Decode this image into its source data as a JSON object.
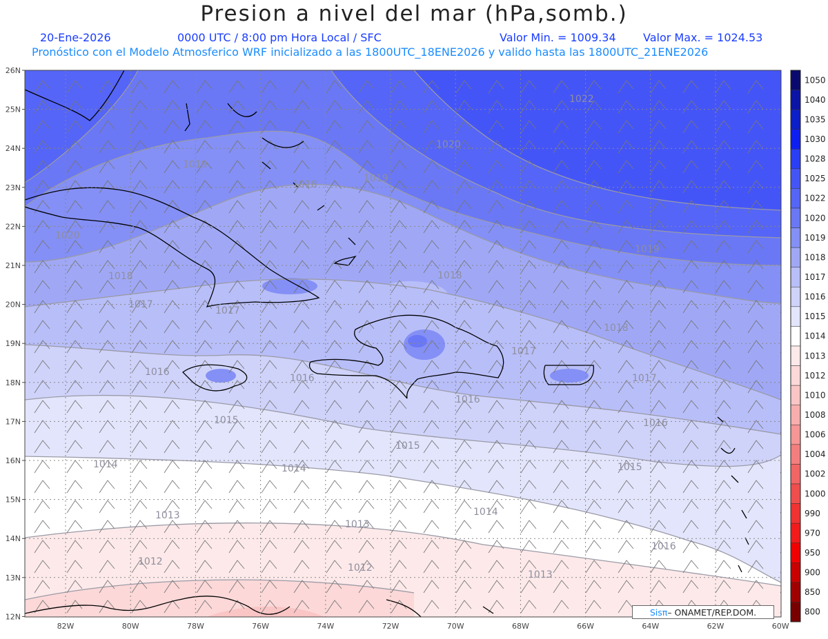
{
  "header": {
    "title": "Presion a nivel del mar (hPa,somb.)",
    "date": "20-Ene-2026",
    "time_label": "0000 UTC / 8:00 pm Hora Local / SFC",
    "min_label": "Valor Min. = 1009.34",
    "max_label": "Valor Max. = 1024.53",
    "model_line": "Pronóstico con el Modelo Atmosferico WRF inicializado a las 1800UTC_18ENE2026 y valido hasta las  1800UTC_21ENE2026"
  },
  "map": {
    "lat_labels": [
      "26N",
      "25N",
      "24N",
      "23N",
      "22N",
      "21N",
      "20N",
      "19N",
      "18N",
      "17N",
      "16N",
      "15N",
      "14N",
      "13N",
      "12N"
    ],
    "lon_labels": [
      "82W",
      "80W",
      "78W",
      "76W",
      "74W",
      "72W",
      "70W",
      "68W",
      "66W",
      "64W",
      "62W",
      "60W"
    ],
    "contour_labels": [
      "1022",
      "1020",
      "1020",
      "1019",
      "1019",
      "1018",
      "1018",
      "1018",
      "1017",
      "1017",
      "1017",
      "1016",
      "1016",
      "1016",
      "1015",
      "1015",
      "1015",
      "1014",
      "1014",
      "1014",
      "1013",
      "1013",
      "1013",
      "1012",
      "1012",
      "1019",
      "1018",
      "1016",
      "1017",
      "1016"
    ]
  },
  "colorbar": {
    "levels": [
      "1050",
      "1040",
      "1035",
      "1030",
      "1028",
      "1025",
      "1022",
      "1020",
      "1019",
      "1018",
      "1017",
      "1016",
      "1015",
      "1014",
      "1013",
      "1012",
      "1010",
      "1008",
      "1006",
      "1004",
      "1002",
      "1000",
      "990",
      "970",
      "950",
      "900",
      "850",
      "800"
    ],
    "colors": [
      "#0a0a6e",
      "#0b14a6",
      "#0c1ec8",
      "#0d1ef0",
      "#2a3ef5",
      "#4455f8",
      "#5565f7",
      "#6a78f5",
      "#8490f5",
      "#a0a8f6",
      "#b8bef8",
      "#cfd3fa",
      "#e3e5fc",
      "#ffffff",
      "#fde9e9",
      "#fcd8d8",
      "#fac5c5",
      "#f8aeae",
      "#f69696",
      "#f47e7e",
      "#f26565",
      "#f04d4d",
      "#f03232",
      "#f21a1a",
      "#f00000",
      "#c80000",
      "#a00000",
      "#780000"
    ]
  },
  "logo": {
    "sis": "Sisπ",
    "rest": " – ONAMET/REP.DOM."
  }
}
